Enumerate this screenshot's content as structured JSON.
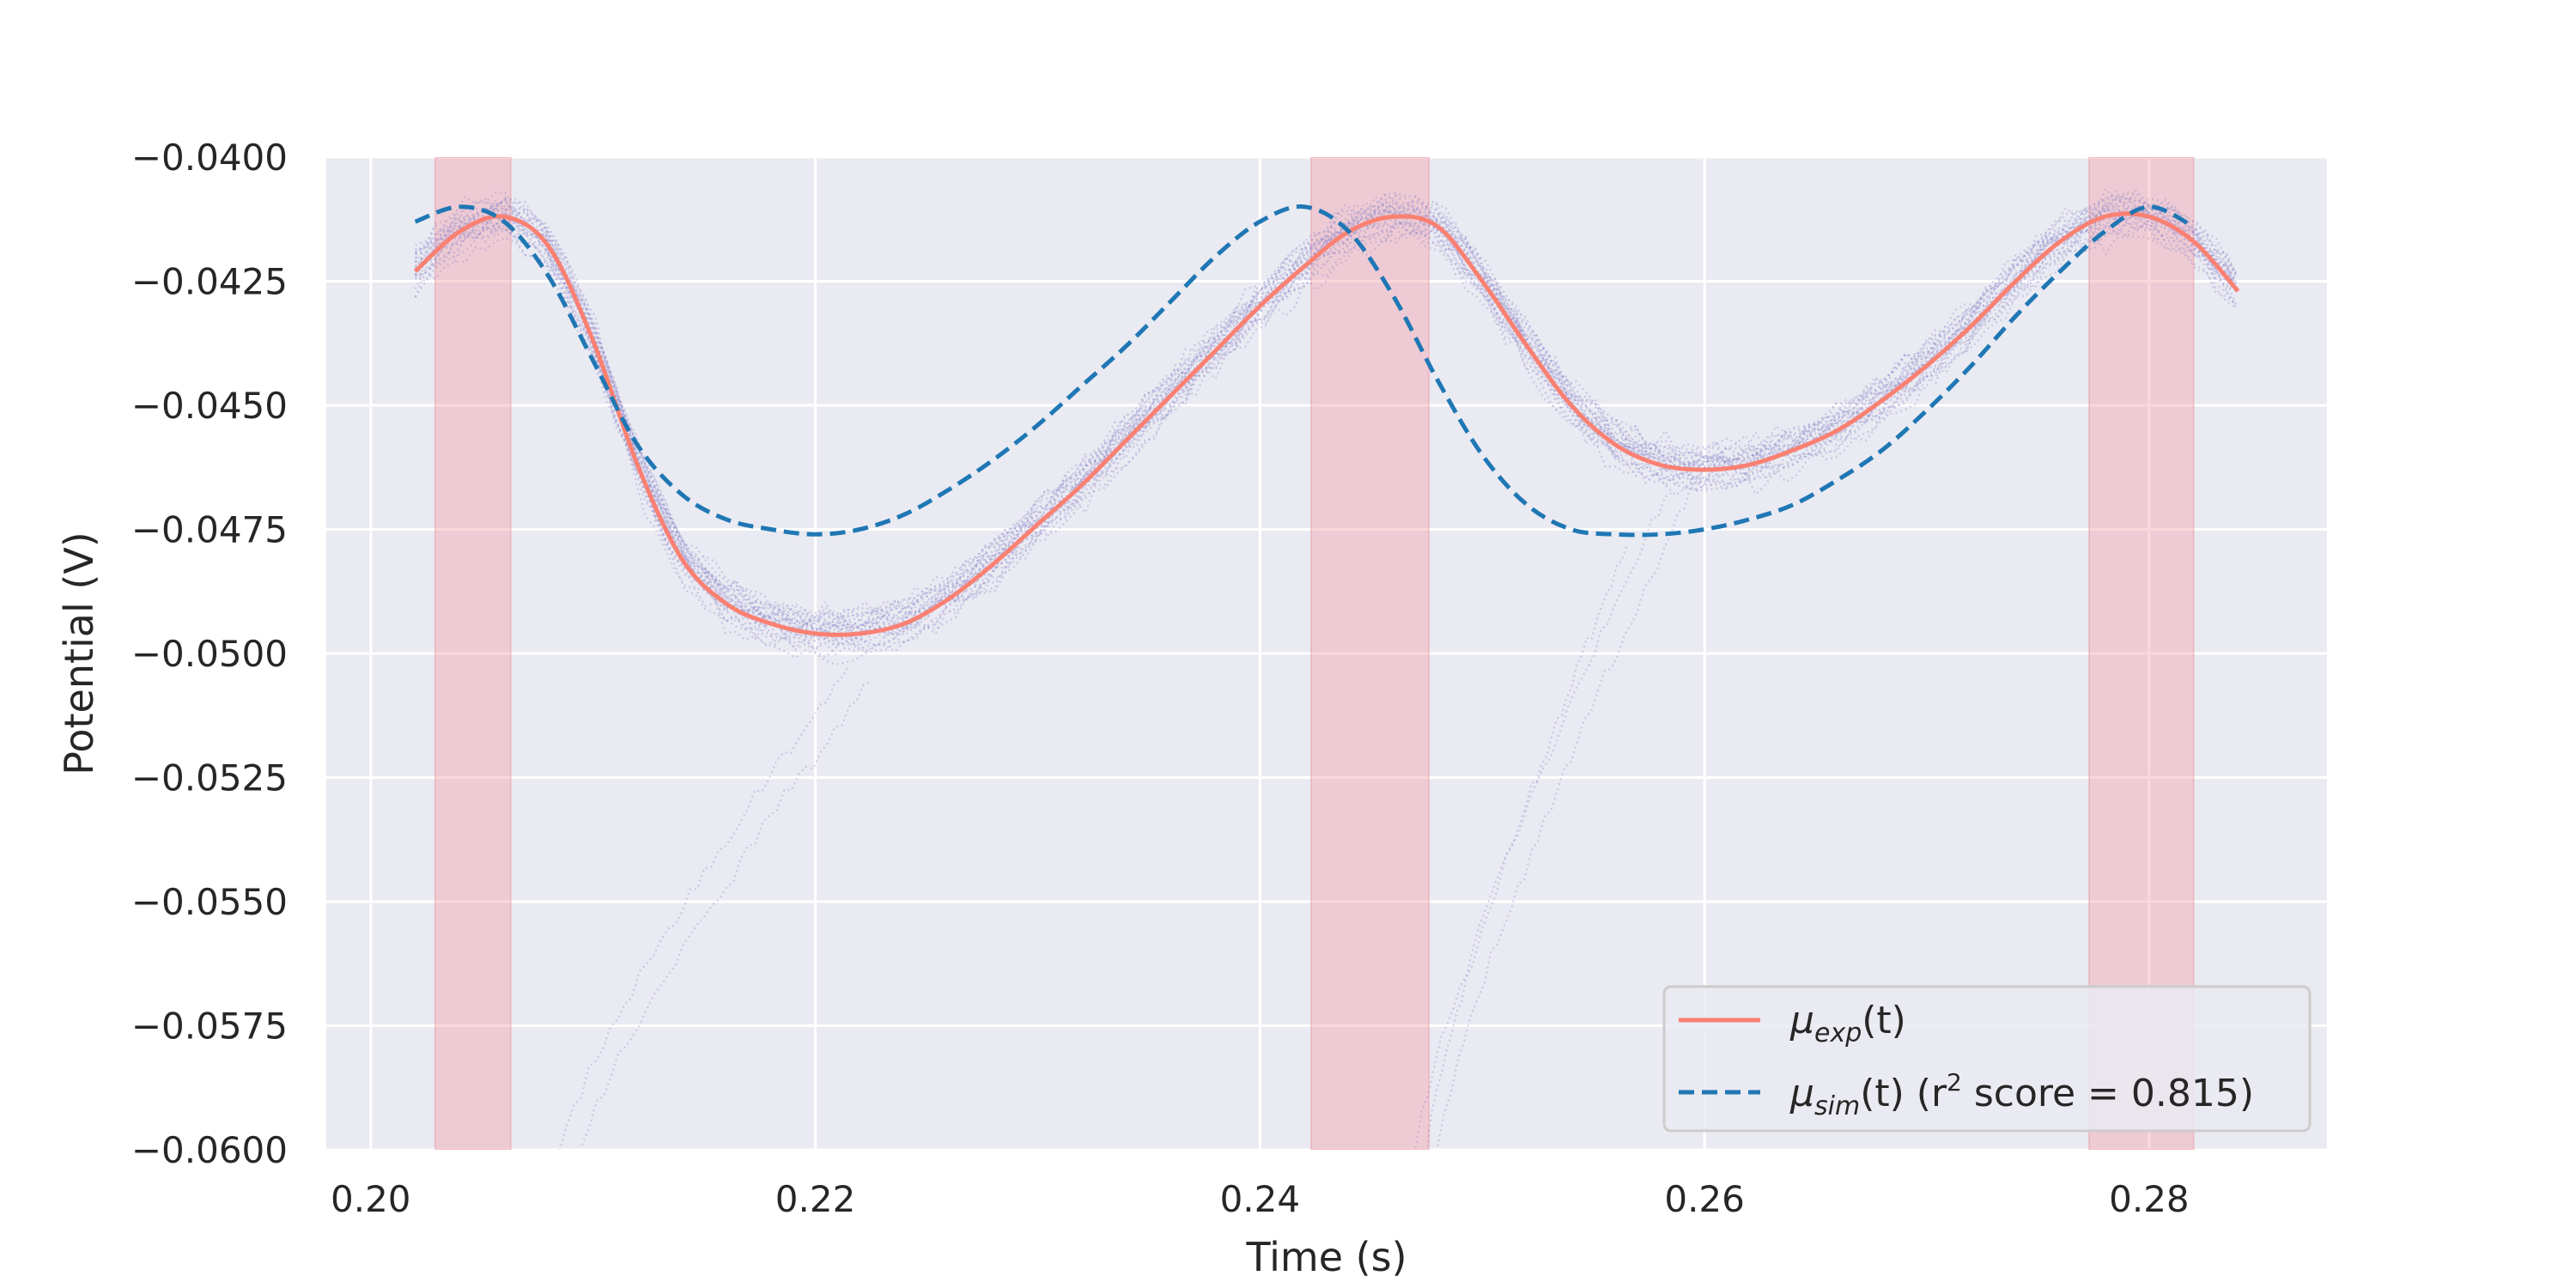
{
  "chart_data": {
    "type": "line",
    "xlabel": "Time (s)",
    "ylabel": "Potential (V)",
    "xlim": [
      0.198,
      0.288
    ],
    "ylim": [
      -0.06,
      -0.04
    ],
    "x_ticks": [
      0.2,
      0.22,
      0.24,
      0.26,
      0.28
    ],
    "x_tick_labels": [
      "0.20",
      "0.22",
      "0.24",
      "0.26",
      "0.28"
    ],
    "y_ticks": [
      -0.04,
      -0.0425,
      -0.045,
      -0.0475,
      -0.05,
      -0.0525,
      -0.055,
      -0.0575,
      -0.06
    ],
    "y_tick_labels": [
      "−0.0400",
      "−0.0425",
      "−0.0450",
      "−0.0475",
      "−0.0500",
      "−0.0525",
      "−0.0550",
      "−0.0575",
      "−0.0600"
    ],
    "grid": true,
    "legend_position": "lower-right",
    "colors": {
      "background": "#eaeaf2",
      "grid": "#ffffff",
      "exp": "#fa8072",
      "sim": "#1f77b4",
      "trials": "#8a84c8",
      "shade": "#f4a6b0"
    },
    "shaded_intervals": [
      [
        0.2029,
        0.2063
      ],
      [
        0.2423,
        0.2476
      ],
      [
        0.2773,
        0.282
      ]
    ],
    "series": [
      {
        "name": "μ_exp(t)",
        "style": "solid",
        "x": [
          0.202,
          0.204,
          0.206,
          0.208,
          0.21,
          0.212,
          0.214,
          0.216,
          0.218,
          0.22,
          0.222,
          0.224,
          0.226,
          0.228,
          0.23,
          0.232,
          0.234,
          0.236,
          0.238,
          0.24,
          0.242,
          0.244,
          0.246,
          0.248,
          0.25,
          0.252,
          0.254,
          0.256,
          0.258,
          0.26,
          0.262,
          0.264,
          0.266,
          0.268,
          0.27,
          0.272,
          0.274,
          0.276,
          0.278,
          0.28,
          0.282,
          0.284
        ],
        "y": [
          -0.0423,
          -0.0415,
          -0.0412,
          -0.0418,
          -0.0437,
          -0.0462,
          -0.0481,
          -0.049,
          -0.0494,
          -0.0496,
          -0.0496,
          -0.0494,
          -0.0489,
          -0.0482,
          -0.0474,
          -0.0466,
          -0.0457,
          -0.0448,
          -0.0439,
          -0.043,
          -0.0422,
          -0.0415,
          -0.0412,
          -0.0414,
          -0.0425,
          -0.0438,
          -0.045,
          -0.0458,
          -0.0462,
          -0.0463,
          -0.0462,
          -0.0459,
          -0.0455,
          -0.0449,
          -0.0442,
          -0.0434,
          -0.0425,
          -0.0417,
          -0.0412,
          -0.0412,
          -0.0417,
          -0.0427
        ]
      },
      {
        "name": "μ_sim(t) (r² score =  0.815)",
        "style": "dashed",
        "x": [
          0.202,
          0.204,
          0.206,
          0.208,
          0.21,
          0.212,
          0.214,
          0.216,
          0.218,
          0.22,
          0.222,
          0.224,
          0.226,
          0.228,
          0.23,
          0.232,
          0.234,
          0.236,
          0.238,
          0.24,
          0.242,
          0.244,
          0.246,
          0.248,
          0.25,
          0.252,
          0.254,
          0.256,
          0.258,
          0.26,
          0.262,
          0.264,
          0.266,
          0.268,
          0.27,
          0.272,
          0.274,
          0.276,
          0.278,
          0.28,
          0.282
        ],
        "y": [
          -0.0413,
          -0.041,
          -0.0413,
          -0.0424,
          -0.0441,
          -0.0458,
          -0.0468,
          -0.0473,
          -0.0475,
          -0.0476,
          -0.0475,
          -0.0472,
          -0.0467,
          -0.0461,
          -0.0454,
          -0.0446,
          -0.0438,
          -0.0429,
          -0.042,
          -0.0413,
          -0.041,
          -0.0415,
          -0.0428,
          -0.0445,
          -0.046,
          -0.047,
          -0.0475,
          -0.0476,
          -0.0476,
          -0.0475,
          -0.0473,
          -0.047,
          -0.0465,
          -0.0459,
          -0.0451,
          -0.0442,
          -0.0432,
          -0.0423,
          -0.0415,
          -0.041,
          -0.0414
        ]
      }
    ],
    "legend": {
      "exp_label": "μ",
      "exp_sub": "exp",
      "exp_tail": "(t)",
      "sim_label": "μ",
      "sim_sub": "sim",
      "sim_mid": "(t) (r",
      "sim_sup": "2",
      "sim_tail": " score =  0.815)"
    }
  }
}
